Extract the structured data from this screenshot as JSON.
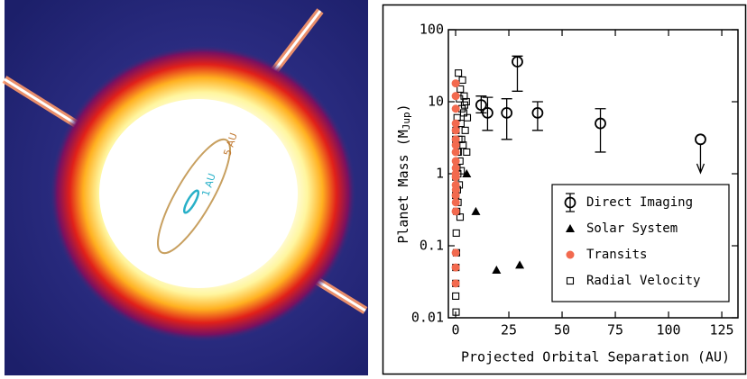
{
  "image_annotations": {
    "inner_orbit": "1 AU",
    "outer_orbit": "5 AU"
  },
  "chart_data": {
    "type": "scatter",
    "xlabel": "Projected Orbital Separation (AU)",
    "ylabel": [
      "Planet Mass (M",
      "Jup",
      ")"
    ],
    "xlim": [
      -3.4,
      132.6
    ],
    "ylim": [
      0.01,
      100
    ],
    "log_y": true,
    "xticks": [
      0,
      25,
      50,
      75,
      100,
      125
    ],
    "yticks": [
      0.01,
      0.1,
      1,
      10,
      100
    ],
    "legend": "lower right",
    "series": [
      {
        "name": "Direct Imaging",
        "color": "#000000",
        "marker": "open-circle-errorbar",
        "x": [
          12,
          15,
          24,
          29,
          38.5,
          68,
          115
        ],
        "values": [
          9,
          7,
          7,
          36,
          7,
          5,
          3
        ],
        "yerr_low": [
          2,
          3,
          4,
          22,
          3,
          3,
          null
        ],
        "yerr_high": [
          3,
          4.5,
          4,
          7,
          3,
          3,
          null
        ],
        "upper_limit": [
          false,
          false,
          false,
          false,
          false,
          false,
          true
        ]
      },
      {
        "name": "Solar System",
        "color": "#000000",
        "marker": "triangle",
        "x": [
          5.2,
          9.5,
          19.2,
          30.1
        ],
        "values": [
          1,
          0.3,
          0.046,
          0.054
        ]
      },
      {
        "name": "Transits",
        "color": "#f26a4f",
        "marker": "circle",
        "x": [
          0.02,
          0.03,
          0.04,
          0.05,
          0.06,
          0.03,
          0.04,
          0.05,
          0.02,
          0.07,
          0.05,
          0.04,
          0.03,
          0.06,
          0.05,
          0.1,
          0.04,
          0.03,
          0.05,
          0.08
        ],
        "values": [
          0.03,
          0.08,
          0.5,
          1,
          1.5,
          2,
          0.7,
          3,
          0.3,
          5,
          8,
          12,
          18,
          1.2,
          0.9,
          0.6,
          4,
          0.05,
          2.5,
          0.4
        ]
      },
      {
        "name": "Radial Velocity",
        "color": "#000000",
        "marker": "open-square",
        "x": [
          0.05,
          0.1,
          0.3,
          0.5,
          0.8,
          1,
          1.2,
          1.5,
          2,
          2.5,
          3,
          3.5,
          4,
          4.5,
          5,
          5.5,
          0.04,
          0.07,
          0.2,
          0.4,
          0.6,
          1.7,
          2.2,
          2.8,
          3.2,
          0.9,
          1.1,
          0.15,
          3.8,
          4.2,
          1.3,
          2.6,
          0.05,
          0.06,
          1.8,
          5.2,
          0.7,
          2.1
        ],
        "values": [
          0.02,
          0.05,
          0.15,
          0.3,
          0.6,
          1,
          2,
          3,
          1.5,
          5,
          8,
          2.5,
          12,
          4,
          10,
          6,
          0.5,
          0.9,
          0.012,
          0.08,
          1.2,
          0.7,
          15,
          3,
          20,
          2,
          0.4,
          4,
          7,
          9,
          25,
          1.1,
          0.03,
          3,
          11,
          2,
          6,
          0.25
        ]
      }
    ]
  }
}
